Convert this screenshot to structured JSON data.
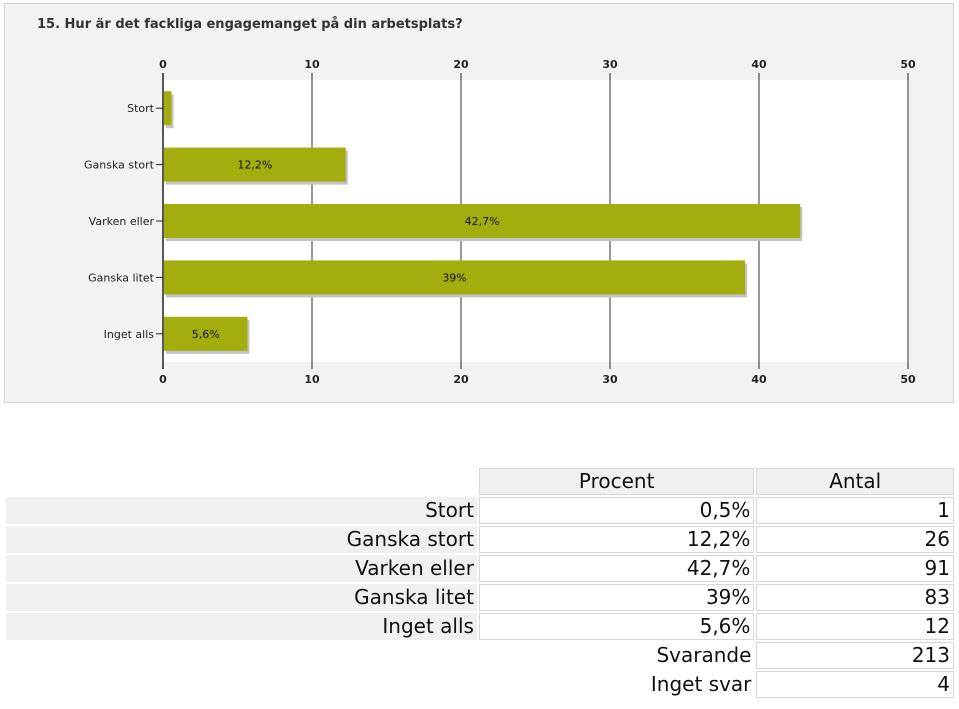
{
  "chart_data": {
    "type": "bar",
    "orientation": "horizontal",
    "title": "15. Hur är det fackliga engagemanget på din arbetsplats?",
    "categories": [
      "Stort",
      "Ganska stort",
      "Varken eller",
      "Ganska litet",
      "Inget alls"
    ],
    "values": [
      0.5,
      12.2,
      42.7,
      39,
      5.6
    ],
    "data_labels": [
      "",
      "12,2%",
      "42,7%",
      "39%",
      "5,6%"
    ],
    "xlim": [
      0,
      50
    ],
    "xticks": [
      0,
      10,
      20,
      30,
      40,
      50
    ],
    "bar_color": "#a3ad0d",
    "grid": true
  },
  "table": {
    "headers": {
      "percent": "Procent",
      "count": "Antal"
    },
    "rows": [
      {
        "label": "Stort",
        "percent": "0,5%",
        "count": "1"
      },
      {
        "label": "Ganska stort",
        "percent": "12,2%",
        "count": "26"
      },
      {
        "label": "Varken eller",
        "percent": "42,7%",
        "count": "91"
      },
      {
        "label": "Ganska litet",
        "percent": "39%",
        "count": "83"
      },
      {
        "label": "Inget alls",
        "percent": "5,6%",
        "count": "12"
      }
    ],
    "summary": [
      {
        "label": "Svarande",
        "count": "213"
      },
      {
        "label": "Inget svar",
        "count": "4"
      }
    ]
  }
}
